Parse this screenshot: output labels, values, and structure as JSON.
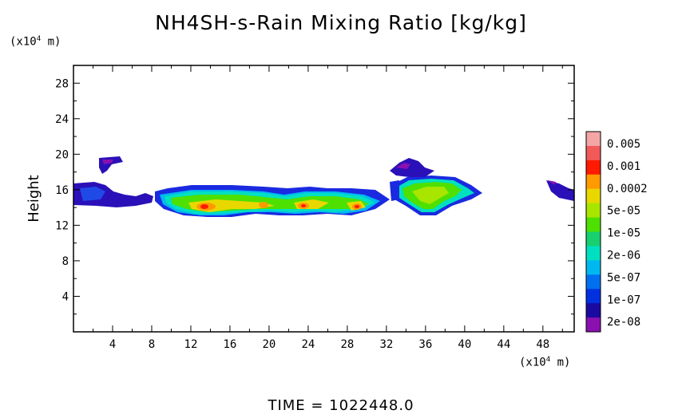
{
  "title": "NH4SH-s-Rain Mixing Ratio [kg/kg]",
  "y_unit_label": {
    "prefix": "(x10",
    "exp": "4",
    "suffix": " m)"
  },
  "x_unit_label": {
    "prefix": "(x10",
    "exp": "4",
    "suffix": " m)"
  },
  "time_label": "TIME = 1022448.0",
  "chart_data": {
    "type": "heatmap",
    "title": "NH4SH-s-Rain Mixing Ratio [kg/kg]",
    "xlabel": "",
    "ylabel": "Height",
    "x_unit": "x10^4 m",
    "y_unit": "x10^4 m",
    "xlim": [
      0,
      51.2
    ],
    "ylim": [
      0,
      30
    ],
    "x_ticks": [
      "4",
      "8",
      "12",
      "16",
      "20",
      "24",
      "28",
      "32",
      "36",
      "40",
      "44",
      "48"
    ],
    "y_ticks": [
      "4",
      "8",
      "12",
      "16",
      "20",
      "24",
      "28"
    ],
    "colorbar": {
      "labels": [
        "0.005",
        "0.001",
        "0.0002",
        "5e-05",
        "1e-05",
        "2e-06",
        "5e-07",
        "1e-07",
        "2e-08"
      ],
      "colors": [
        "#f4a6a6",
        "#f25a5a",
        "#ff1a00",
        "#ff9a00",
        "#e8d800",
        "#a8e600",
        "#4ee000",
        "#18d070",
        "#00e0c0",
        "#00b8f0",
        "#0070f0",
        "#0030e0",
        "#1a0aa0",
        "#8a10b0"
      ]
    },
    "regions": [
      {
        "label": "layer-west",
        "x": [
          0,
          9
        ],
        "y": [
          14.6,
          16.6
        ],
        "level": "2e-08 to 1e-07"
      },
      {
        "label": "cap-west",
        "x": [
          2.6,
          5.2
        ],
        "y": [
          17.8,
          19.8
        ],
        "level": "2e-08"
      },
      {
        "label": "cloud-main",
        "x": [
          9,
          31
        ],
        "y": [
          13.2,
          16.6
        ],
        "level": "2e-06 to 0.0002"
      },
      {
        "label": "core-1",
        "x": [
          12.5,
          15
        ],
        "y": [
          13.8,
          14.8
        ],
        "level": "0.0002"
      },
      {
        "label": "core-2",
        "x": [
          22.5,
          24.5
        ],
        "y": [
          13.8,
          14.8
        ],
        "level": "0.0002"
      },
      {
        "label": "core-3",
        "x": [
          28.5,
          30
        ],
        "y": [
          13.6,
          14.6
        ],
        "level": "0.0002"
      },
      {
        "label": "cloud-east",
        "x": [
          32,
          41.5
        ],
        "y": [
          13.2,
          17.2
        ],
        "level": "1e-05 to 5e-05"
      },
      {
        "label": "cap-east",
        "x": [
          32,
          36
        ],
        "y": [
          18.0,
          19.8
        ],
        "level": "2e-08"
      },
      {
        "label": "fragment-far-east",
        "x": [
          48.5,
          51.2
        ],
        "y": [
          14.6,
          16.6
        ],
        "level": "2e-08"
      }
    ]
  }
}
